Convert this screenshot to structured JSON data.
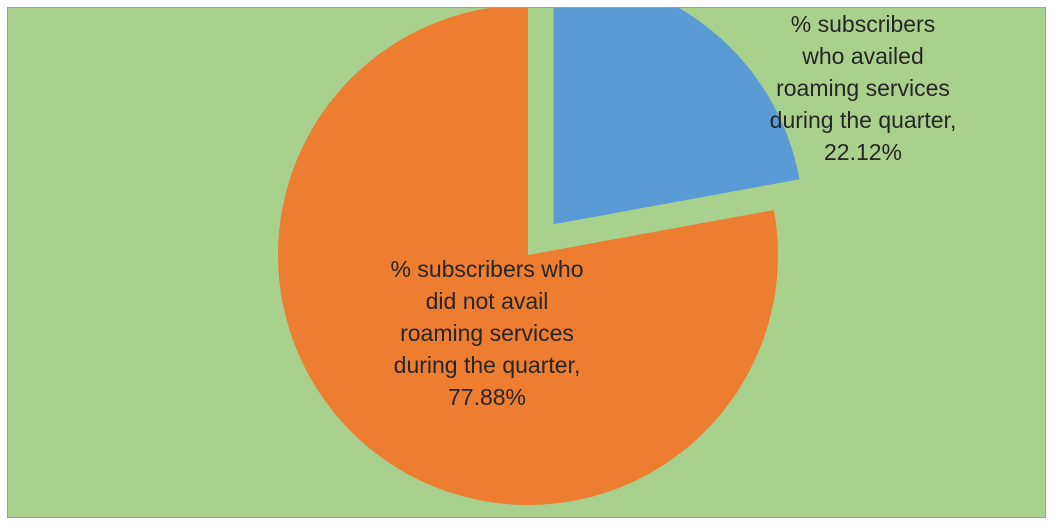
{
  "chart_data": {
    "type": "pie",
    "title": "",
    "slices": [
      {
        "label": "% subscribers who availed roaming services during the quarter, 22.12%",
        "value": 22.12,
        "color": "#5b9bd5",
        "exploded": true
      },
      {
        "label": "% subscribers who did not avail roaming services during the quarter, 77.88%",
        "value": 77.88,
        "color": "#ed7d31",
        "exploded": false
      }
    ],
    "background_color": "#a9d18e",
    "legend": "none"
  }
}
